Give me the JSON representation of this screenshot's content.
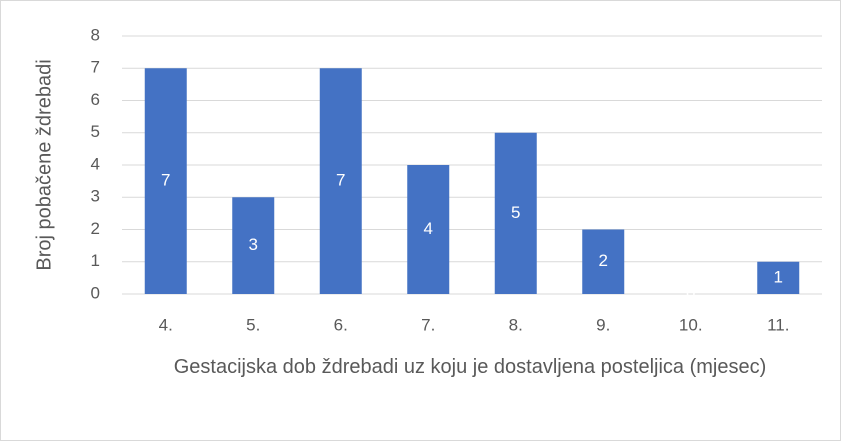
{
  "chart_data": {
    "type": "bar",
    "xlabel": "Gestacijska dob ždrebadi uz koju je dostavljena posteljica (mjesec)",
    "ylabel": "Broj pobačene ždrebadi",
    "categories": [
      "4.",
      "5.",
      "6.",
      "7.",
      "8.",
      "9.",
      "10.",
      "11."
    ],
    "values": [
      7,
      3,
      7,
      4,
      5,
      2,
      0,
      1
    ],
    "color": "#4472c4",
    "ylim": [
      0,
      8
    ],
    "yticks": [
      0,
      1,
      2,
      3,
      4,
      5,
      6,
      7,
      8
    ],
    "grid": true
  }
}
